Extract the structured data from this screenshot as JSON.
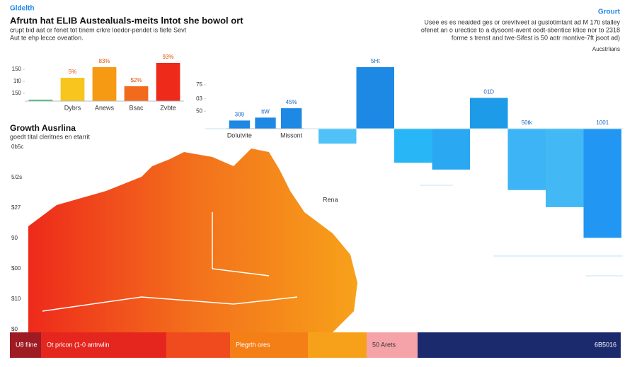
{
  "header": {
    "kicker": "Gldelth",
    "title": "Afrutn hat ELIB Austealuals-meits lntot she bowol ort",
    "subtitle": [
      "crupt bid aat or fenet tot tinem crkre loedor-pendet is fiefe Sevt",
      "Aut te ehp lecce oveatlon."
    ]
  },
  "aside": {
    "kicker": "Grourt",
    "lines": [
      "Usee es es neaided ges or orevitveet ai guslotimtant ad M 17ti stalley",
      "ofenet an o urectice to a dysoont-avent oodt-sbentice ktice nor to 2318",
      "forme s trenst and twe-Sifest is 50 aotr montive-7ft jsoot ad)"
    ],
    "note": "Aucstrlians"
  },
  "section": {
    "title": "Growth Ausrlina",
    "subtitle": "goedt tital cleritnes en etarrit",
    "axis_labels": [
      "0b5c",
      "5/2s",
      "$27",
      "90",
      "$00",
      "$10",
      "$0"
    ],
    "region_label": "Rena"
  },
  "chart_data": [
    {
      "type": "bar",
      "categories": [
        null,
        "Dybrs",
        "Anews",
        "Bsac",
        "Zvbte"
      ],
      "values": [
        7,
        110,
        160,
        70,
        180
      ],
      "colors": [
        "#3cbf7a",
        "#f7c51e",
        "#f59a12",
        "#f26a1b",
        "#ee2a1b"
      ],
      "annotations": [
        null,
        "5%",
        "83%",
        "$2%",
        "93%"
      ],
      "ylim": [
        0,
        180
      ],
      "yticks": [
        150,
        {
          "value": 93,
          "label": "1t0"
        },
        {
          "value": 37,
          "label": "150"
        }
      ]
    },
    {
      "type": "bar",
      "categories": [
        "Dolutvite",
        null,
        "Missont"
      ],
      "values": [
        14,
        19,
        35
      ],
      "colors": [
        "#1e88e5",
        "#1e88e5",
        "#1e88e5"
      ],
      "annotations": [
        "309",
        "ltW",
        "45%"
      ],
      "ylim": [
        0,
        75
      ],
      "yticks": [
        75,
        {
          "value": 51,
          "label": "03"
        },
        {
          "value": 30,
          "label": "50"
        }
      ]
    },
    {
      "type": "bar",
      "categories": [
        null,
        null,
        null,
        null,
        null,
        null,
        null,
        null
      ],
      "values": [
        -22,
        90,
        -50,
        -60,
        45,
        -90,
        -115,
        -160
      ],
      "colors": [
        "#4fc3f7",
        "#1e88e5",
        "#29b6f6",
        "#2aa8f2",
        "#1e9be8",
        "#3db4f5",
        "#42b8f5",
        "#2196f3"
      ],
      "annotations": [
        null,
        "5Ht",
        null,
        null,
        "01D",
        "50tk",
        null,
        "1001"
      ],
      "ylim": [
        -170,
        90
      ]
    }
  ],
  "strip": [
    {
      "label": "U8 fiine",
      "color": "#9e1b24"
    },
    {
      "label": "Ot prlcon (1-0 antrwlin",
      "color": "#e5261e"
    },
    {
      "label": null,
      "color": "#f04b1e"
    },
    {
      "label": "Plegrth ores",
      "color": "#f57f17"
    },
    {
      "label": null,
      "color": "#f7a11a"
    },
    {
      "label": "50 Arets",
      "color": "#f5a3a8"
    },
    {
      "label": "6B5016",
      "color": "#1a2a6c"
    }
  ]
}
